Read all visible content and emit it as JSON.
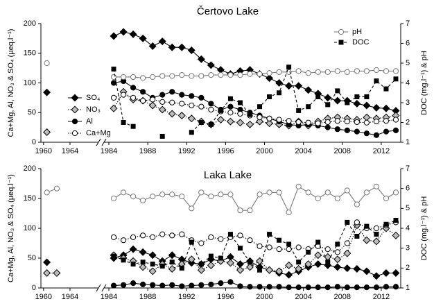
{
  "chart_data": [
    {
      "type": "line",
      "title": "Čertovo Lake",
      "ylabel": "Ca+Mg, Al, NO₃ & SO₄ (µeq.l⁻¹)",
      "y2label": "DOC (mg.l⁻¹) & pH",
      "x": [
        1960.5,
        1962,
        1984.5,
        1985.5,
        1986.5,
        1987.5,
        1988.5,
        1989.5,
        1990.5,
        1991.5,
        1992.5,
        1993.5,
        1994.5,
        1995.5,
        1996.5,
        1997.5,
        1998.5,
        1999.5,
        2000.5,
        2001.5,
        2002.5,
        2003.5,
        2004.5,
        2005.5,
        2006.5,
        2007.5,
        2008.5,
        2009.5,
        2010.5,
        2011.5,
        2012.5,
        2013.5
      ],
      "x_segments": [
        {
          "xlim": [
            1959.6,
            1968.3
          ],
          "xticks": [
            1960,
            1964
          ]
        },
        {
          "xlim": [
            1983.5,
            2014
          ],
          "xticks": [
            1984,
            1988,
            1992,
            1996,
            2000,
            2004,
            2008,
            2012
          ]
        }
      ],
      "ylim": [
        0,
        200
      ],
      "yticks": [
        0,
        50,
        100,
        150,
        200
      ],
      "y2lim": [
        1,
        7
      ],
      "y2ticks": [
        1,
        2,
        3,
        4,
        5,
        6,
        7
      ],
      "legend": true,
      "series": [
        {
          "name": "SO₄",
          "color": "#000000",
          "marker": "diamond",
          "dash": "solid",
          "values": [
            84,
            null,
            179,
            186,
            182,
            175,
            162,
            170,
            160,
            160,
            155,
            140,
            130,
            122,
            115,
            120,
            122,
            115,
            108,
            100,
            95,
            95,
            88,
            82,
            75,
            70,
            70,
            65,
            62,
            58,
            57,
            53
          ]
        },
        {
          "name": "NO₃",
          "color": "#bbbbbb",
          "marker": "diamond",
          "dash": "dotted",
          "values": [
            17,
            null,
            57,
            85,
            72,
            70,
            62,
            55,
            48,
            45,
            40,
            35,
            30,
            38,
            35,
            33,
            30,
            35,
            32,
            30,
            28,
            35,
            28,
            35,
            40,
            42,
            40,
            38,
            42,
            40,
            42,
            45
          ]
        },
        {
          "name": "Al",
          "color": "#000000",
          "marker": "circle",
          "dash": "solid",
          "values": [
            null,
            null,
            100,
            103,
            92,
            85,
            75,
            80,
            85,
            80,
            78,
            75,
            65,
            55,
            60,
            55,
            50,
            45,
            40,
            35,
            30,
            28,
            30,
            28,
            25,
            22,
            20,
            18,
            15,
            12,
            18,
            20
          ]
        },
        {
          "name": "Ca+Mg",
          "color": "#ffffff",
          "marker": "circle",
          "dash": "dotted",
          "values": [
            null,
            null,
            75,
            80,
            75,
            70,
            72,
            68,
            67,
            65,
            62,
            60,
            55,
            52,
            50,
            48,
            45,
            42,
            40,
            38,
            36,
            34,
            33,
            32,
            34,
            36,
            35,
            34,
            33,
            35,
            36,
            38
          ]
        },
        {
          "name": "pH",
          "color": "#ffffff",
          "marker": "circle",
          "dash": "solid",
          "axis": "y2",
          "values": [
            5.0,
            null,
            4.3,
            4.3,
            4.3,
            4.25,
            4.3,
            4.35,
            4.35,
            4.4,
            4.35,
            4.35,
            4.4,
            4.4,
            4.4,
            4.4,
            4.45,
            4.45,
            4.5,
            4.55,
            4.55,
            4.6,
            4.5,
            4.55,
            4.55,
            4.6,
            4.55,
            4.6,
            4.6,
            4.65,
            4.6,
            4.6
          ]
        },
        {
          "name": "DOC",
          "color": "#000000",
          "marker": "square",
          "dash": "dashed",
          "axis": "y2",
          "values": [
            null,
            null,
            4.7,
            2.0,
            1.8,
            null,
            null,
            1.3,
            null,
            null,
            1.5,
            2.0,
            1.9,
            2.6,
            3.2,
            3.0,
            2.4,
            2.8,
            3.3,
            3.5,
            4.8,
            2.6,
            2.8,
            3.3,
            2.9,
            3.6,
            3.0,
            3.3,
            3.3,
            4.1,
            3.7,
            4.2
          ]
        }
      ]
    },
    {
      "type": "line",
      "title": "Laka Lake",
      "ylabel": "Ca+Mg, Al, NO₃ & SO₄ (µeq.l⁻¹)",
      "y2label": "DOC (mg.l⁻¹) & pH",
      "x": [
        1960.5,
        1962,
        1984.5,
        1985.5,
        1986.5,
        1987.5,
        1988.5,
        1989.5,
        1990.5,
        1991.5,
        1992.5,
        1993.5,
        1994.5,
        1995.5,
        1996.5,
        1997.5,
        1998.5,
        1999.5,
        2000.5,
        2001.5,
        2002.5,
        2003.5,
        2004.5,
        2005.5,
        2006.5,
        2007.5,
        2008.5,
        2009.5,
        2010.5,
        2011.5,
        2012.5,
        2013.5
      ],
      "x_segments": [
        {
          "xlim": [
            1959.6,
            1968.3
          ],
          "xticks": [
            1960,
            1964
          ]
        },
        {
          "xlim": [
            1983.5,
            2014
          ],
          "xticks": [
            1984,
            1988,
            1992,
            1996,
            2000,
            2004,
            2008,
            2012
          ]
        }
      ],
      "ylim": [
        0,
        200
      ],
      "yticks": [
        0,
        50,
        100,
        150,
        200
      ],
      "y2lim": [
        1,
        7
      ],
      "y2ticks": [
        1,
        2,
        3,
        4,
        5,
        6,
        7
      ],
      "legend": false,
      "series": [
        {
          "name": "SO₄",
          "color": "#000000",
          "marker": "diamond",
          "dash": "solid",
          "values": [
            43,
            null,
            50,
            55,
            65,
            60,
            55,
            45,
            55,
            48,
            42,
            40,
            48,
            45,
            52,
            40,
            45,
            35,
            30,
            25,
            22,
            28,
            35,
            40,
            38,
            35,
            33,
            32,
            28,
            20,
            25,
            25
          ]
        },
        {
          "name": "NO₃",
          "color": "#bbbbbb",
          "marker": "diamond",
          "dash": "dotted",
          "values": [
            25,
            25,
            55,
            50,
            45,
            35,
            28,
            40,
            32,
            40,
            48,
            30,
            38,
            45,
            42,
            30,
            35,
            45,
            30,
            28,
            38,
            32,
            40,
            55,
            52,
            48,
            58,
            105,
            80,
            78,
            100,
            88
          ]
        },
        {
          "name": "Al",
          "color": "#000000",
          "marker": "circle",
          "dash": "solid",
          "values": [
            null,
            null,
            4,
            5,
            8,
            6,
            5,
            4,
            5,
            3,
            4,
            5,
            6,
            8,
            10,
            3,
            2,
            2,
            2,
            2,
            1,
            1,
            1,
            1,
            1,
            2,
            1,
            1,
            1,
            1,
            2,
            2
          ]
        },
        {
          "name": "Ca+Mg",
          "color": "#ffffff",
          "marker": "circle",
          "dash": "dotted",
          "values": [
            null,
            null,
            85,
            80,
            85,
            88,
            85,
            90,
            88,
            90,
            80,
            75,
            85,
            82,
            85,
            88,
            80,
            70,
            68,
            65,
            65,
            68,
            65,
            70,
            65,
            60,
            75,
            110,
            100,
            100,
            105,
            110
          ]
        },
        {
          "name": "pH",
          "color": "#ffffff",
          "marker": "circle",
          "dash": "solid",
          "axis": "y2",
          "values": [
            5.8,
            6.0,
            5.5,
            5.8,
            5.6,
            5.4,
            5.6,
            5.7,
            5.7,
            5.6,
            5.0,
            5.8,
            5.6,
            5.7,
            5.7,
            4.9,
            4.9,
            5.7,
            5.8,
            5.8,
            4.8,
            6.1,
            5.8,
            5.5,
            5.8,
            5.5,
            5.9,
            5.2,
            5.8,
            6.1,
            5.5,
            5.8
          ]
        },
        {
          "name": "DOC",
          "color": "#000000",
          "marker": "square",
          "dash": "dashed",
          "axis": "y2",
          "values": [
            null,
            null,
            2.6,
            2.4,
            2.2,
            2.3,
            2.2,
            2.1,
            2.3,
            2.0,
            3.3,
            2.2,
            2.6,
            2.5,
            3.7,
            3.0,
            2.3,
            1.9,
            3.7,
            3.4,
            3.2,
            2.3,
            2.8,
            3.3,
            2.3,
            3.2,
            4.3,
            3.6,
            4.1,
            3.7,
            4.2,
            4.4
          ]
        }
      ]
    }
  ]
}
